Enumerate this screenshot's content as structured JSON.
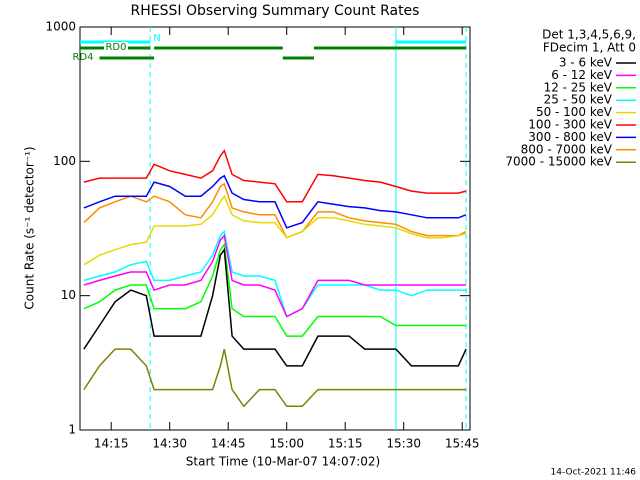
{
  "chart_data": {
    "type": "line",
    "title": "RHESSI Observing Summary Count Rates",
    "xlabel": "Start Time (10-Mar-07 14:07:02)",
    "ylabel": "Count Rate (s⁻¹ detector⁻¹)",
    "footer": "14-Oct-2021 11:46",
    "legend_title": [
      "Det 1,3,4,5,6,9,",
      "FDecim 1, Att 0"
    ],
    "log_y": true,
    "xlim": [
      "14:07",
      "15:47"
    ],
    "xticks": [
      "14:15",
      "14:30",
      "14:45",
      "15:00",
      "15:15",
      "15:30",
      "15:45"
    ],
    "ylim": [
      1,
      1000
    ],
    "yticks": [
      1,
      10,
      100,
      1000
    ],
    "x": [
      "14:08",
      "14:12",
      "14:16",
      "14:20",
      "14:24",
      "14:26",
      "14:30",
      "14:34",
      "14:38",
      "14:41",
      "14:43",
      "14:44",
      "14:46",
      "14:49",
      "14:53",
      "14:57",
      "15:00",
      "15:04",
      "15:08",
      "15:12",
      "15:16",
      "15:20",
      "15:24",
      "15:28",
      "15:32",
      "15:36",
      "15:40",
      "15:44",
      "15:46"
    ],
    "series": [
      {
        "name": "3 - 6 keV",
        "color": "#000000",
        "values": [
          4,
          6,
          9,
          11,
          10,
          5,
          5,
          5,
          5,
          10,
          20,
          22,
          5,
          4,
          4,
          4,
          3,
          3,
          5,
          5,
          5,
          4,
          4,
          4,
          3,
          3,
          3,
          3,
          4
        ]
      },
      {
        "name": "6 - 12 keV",
        "color": "#ff00ff",
        "values": [
          12,
          13,
          14,
          15,
          15,
          11,
          12,
          12,
          13,
          18,
          26,
          28,
          13,
          12,
          12,
          11,
          7,
          8,
          13,
          13,
          13,
          12,
          12,
          12,
          12,
          12,
          12,
          12,
          12
        ]
      },
      {
        "name": "12 - 25 keV",
        "color": "#00ff00",
        "values": [
          8,
          9,
          11,
          12,
          12,
          8,
          8,
          8,
          9,
          14,
          22,
          24,
          8,
          7,
          7,
          7,
          5,
          5,
          7,
          7,
          7,
          7,
          7,
          6,
          6,
          6,
          6,
          6,
          6
        ]
      },
      {
        "name": "25 - 50 keV",
        "color": "#00ffff",
        "values": [
          13,
          14,
          15,
          17,
          18,
          13,
          13,
          14,
          15,
          20,
          28,
          30,
          15,
          14,
          14,
          13,
          7,
          8,
          12,
          12,
          12,
          12,
          11,
          11,
          10,
          11,
          11,
          11,
          11
        ]
      },
      {
        "name": "50 - 100 keV",
        "color": "#e8d800",
        "values": [
          17,
          20,
          22,
          24,
          25,
          33,
          33,
          33,
          34,
          40,
          50,
          55,
          40,
          36,
          35,
          35,
          27,
          30,
          38,
          38,
          36,
          34,
          33,
          32,
          29,
          27,
          27,
          28,
          29
        ]
      },
      {
        "name": "100 - 300 keV",
        "color": "#ff0000",
        "values": [
          70,
          75,
          75,
          75,
          75,
          95,
          85,
          80,
          75,
          85,
          110,
          120,
          80,
          72,
          70,
          68,
          50,
          50,
          80,
          78,
          75,
          72,
          70,
          65,
          60,
          58,
          58,
          58,
          60
        ]
      },
      {
        "name": "300 - 800 keV",
        "color": "#0000ff",
        "values": [
          45,
          50,
          55,
          55,
          55,
          70,
          65,
          55,
          55,
          65,
          75,
          78,
          58,
          52,
          50,
          50,
          32,
          35,
          50,
          48,
          46,
          45,
          43,
          42,
          40,
          38,
          38,
          38,
          40
        ]
      },
      {
        "name": "800 - 7000 keV",
        "color": "#ff8c00",
        "values": [
          35,
          45,
          50,
          55,
          50,
          55,
          50,
          40,
          38,
          50,
          65,
          68,
          45,
          42,
          40,
          40,
          27,
          30,
          42,
          42,
          38,
          36,
          35,
          34,
          30,
          28,
          28,
          28,
          30
        ]
      },
      {
        "name": "7000 - 15000 keV",
        "color": "#808000",
        "values": [
          2,
          3,
          4,
          4,
          3,
          2,
          2,
          2,
          2,
          2,
          3,
          4,
          2,
          1.5,
          2,
          2,
          1.5,
          1.5,
          2,
          2,
          2,
          2,
          2,
          2,
          2,
          2,
          2,
          2,
          2
        ]
      }
    ],
    "bands": [
      {
        "label": "N",
        "color": "#00ffff",
        "segments": [
          [
            "14:07",
            "14:25"
          ],
          [
            "15:28",
            "15:46"
          ]
        ]
      },
      {
        "label": "RD0",
        "color": "#008000",
        "segments": [
          [
            "14:07",
            "14:25"
          ],
          [
            "14:26",
            "14:59"
          ],
          [
            "15:07",
            "15:46"
          ]
        ]
      },
      {
        "label": "RD4",
        "color": "#008000",
        "segments": [
          [
            "14:12",
            "14:26"
          ],
          [
            "14:59",
            "15:07"
          ]
        ]
      }
    ],
    "vlines": [
      {
        "x": "14:25",
        "color": "#00ffff",
        "dashed": true
      },
      {
        "x": "15:28",
        "color": "#00ffff",
        "dashed": false
      },
      {
        "x": "15:46",
        "color": "#00ffff",
        "dashed": true
      }
    ]
  }
}
